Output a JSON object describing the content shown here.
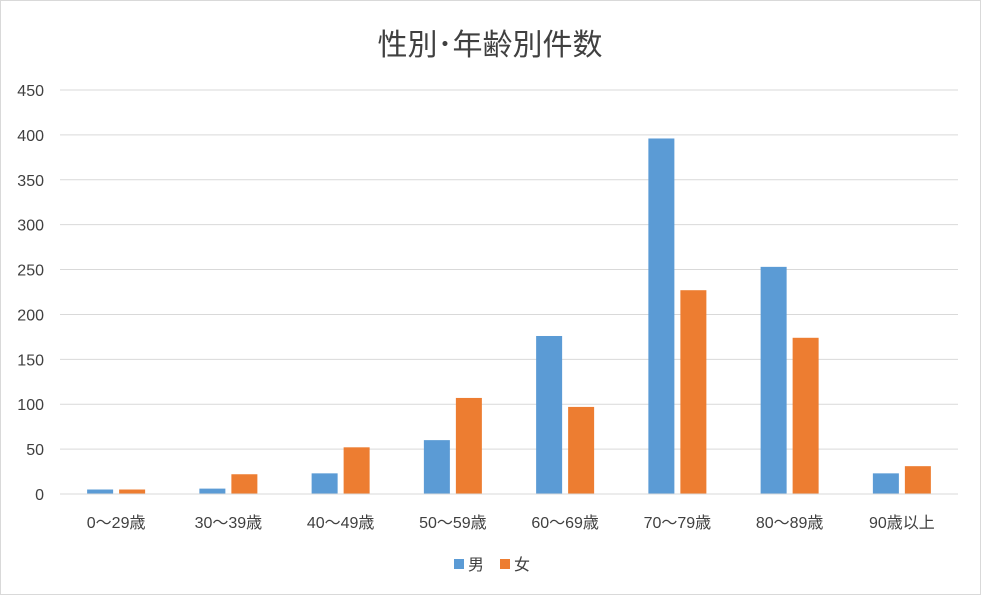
{
  "chart_data": {
    "type": "bar",
    "title": "性別･年齢別件数",
    "categories": [
      "0～29歳",
      "30～39歳",
      "40～49歳",
      "50～59歳",
      "60～69歳",
      "70～79歳",
      "80～89歳",
      "90歳以上"
    ],
    "series": [
      {
        "name": "男",
        "color": "#5b9bd5",
        "values": [
          5,
          6,
          23,
          60,
          176,
          396,
          253,
          23
        ]
      },
      {
        "name": "女",
        "color": "#ed7d31",
        "values": [
          5,
          22,
          52,
          107,
          97,
          227,
          174,
          31
        ]
      }
    ],
    "ylim": [
      0,
      450
    ],
    "yticks": [
      0,
      50,
      100,
      150,
      200,
      250,
      300,
      350,
      400,
      450
    ],
    "grid": true,
    "legend_position": "bottom"
  }
}
